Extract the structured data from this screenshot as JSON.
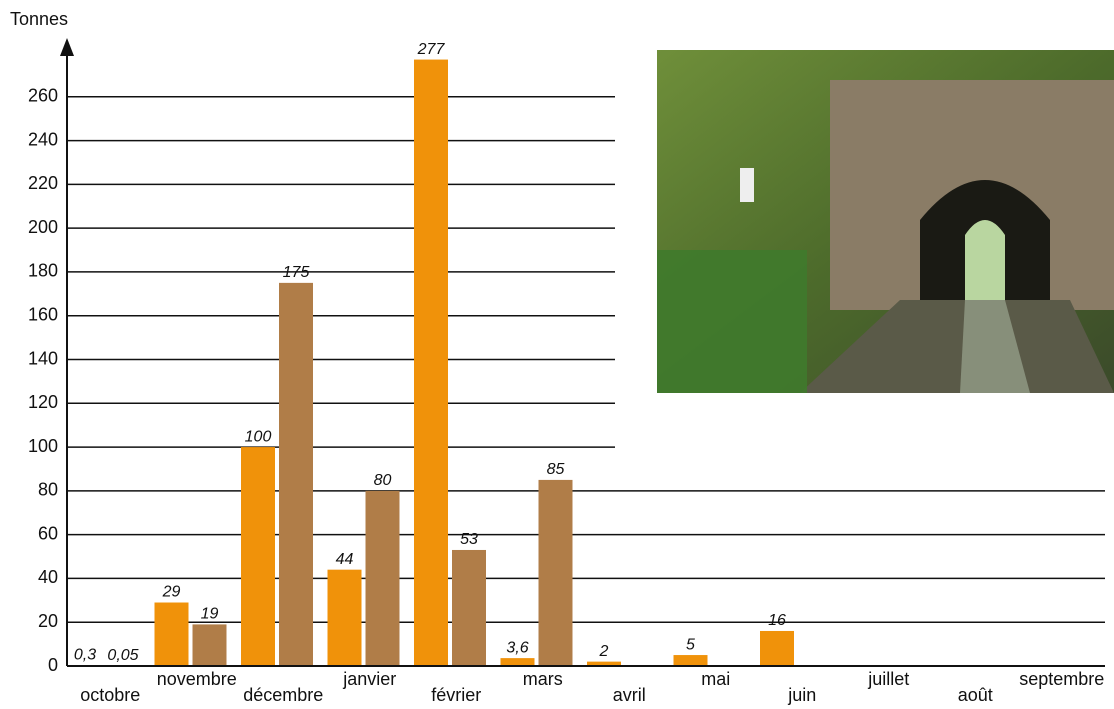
{
  "chart_data": {
    "type": "bar",
    "y_label": "Tonnes",
    "categories": [
      "octobre",
      "novembre",
      "décembre",
      "janvier",
      "février",
      "mars",
      "avril",
      "mai",
      "juin",
      "juillet",
      "août",
      "septembre"
    ],
    "series": [
      {
        "color": "#f0920a",
        "values": [
          0.3,
          29,
          100,
          44,
          277,
          3.6,
          2,
          5,
          16,
          null,
          null,
          null
        ],
        "value_labels": [
          "0,3",
          "29",
          "100",
          "44",
          "277",
          "3,6",
          "2",
          "5",
          "16",
          null,
          null,
          null
        ]
      },
      {
        "color": "#b07d48",
        "values": [
          0.05,
          19,
          175,
          80,
          53,
          85,
          null,
          null,
          null,
          null,
          null,
          null
        ],
        "value_labels": [
          "0,05",
          "19",
          "175",
          "80",
          "53",
          "85",
          null,
          null,
          null,
          null,
          null,
          null
        ]
      }
    ],
    "ylim": [
      0,
      280
    ],
    "yticks": [
      0,
      20,
      40,
      60,
      80,
      100,
      120,
      140,
      160,
      180,
      200,
      220,
      240,
      260
    ],
    "grid": true
  }
}
